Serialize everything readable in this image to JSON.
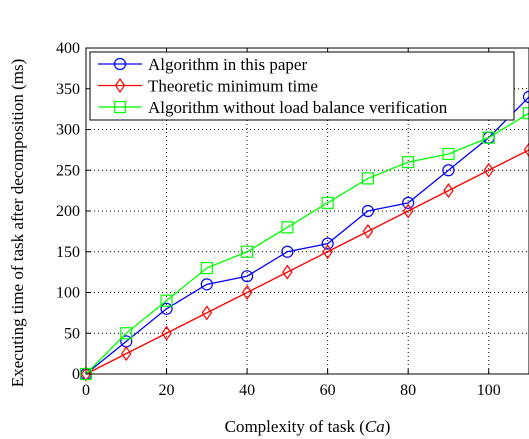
{
  "chart_data": {
    "type": "line",
    "title": "",
    "xlabel_main": "Complexity of task (",
    "xlabel_italic": "Ca",
    "xlabel_end": ")",
    "ylabel": "Executing time of task after decomposition (ms)",
    "xlim": [
      0,
      110
    ],
    "ylim": [
      0,
      400
    ],
    "xticks": [
      0,
      20,
      40,
      60,
      80,
      100
    ],
    "yticks": [
      0,
      50,
      100,
      150,
      200,
      250,
      300,
      350,
      400
    ],
    "grid": true,
    "legend_position": "top-left",
    "x": [
      0,
      10,
      20,
      30,
      40,
      50,
      60,
      70,
      80,
      90,
      100,
      110
    ],
    "series": [
      {
        "name": "Algorithm in this paper",
        "color": "#0000ff",
        "marker": "circle",
        "values": [
          0,
          40,
          80,
          110,
          120,
          150,
          160,
          200,
          210,
          250,
          290,
          340
        ]
      },
      {
        "name": "Theoretic minimum time",
        "color": "#ff0000",
        "marker": "diamond",
        "values": [
          0,
          25,
          50,
          75,
          100,
          125,
          150,
          175,
          200,
          225,
          250,
          275
        ]
      },
      {
        "name": "Algorithm without load balance verification",
        "color": "#00ff00",
        "marker": "square",
        "values": [
          0,
          50,
          90,
          130,
          150,
          180,
          210,
          240,
          260,
          270,
          290,
          320
        ]
      }
    ]
  }
}
